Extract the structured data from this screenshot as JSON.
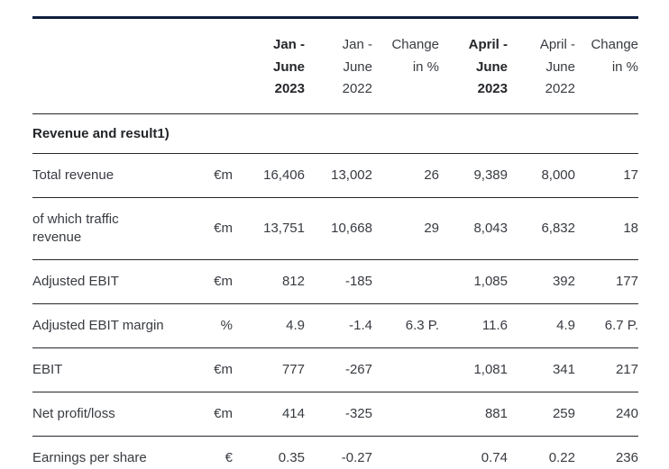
{
  "table": {
    "colors": {
      "top_rule": "#101f3e",
      "divider": "#24272d",
      "text": "#383b41",
      "bold_text": "#24262a",
      "background": "#ffffff"
    },
    "column_headers": [
      {
        "line1": "Jan -",
        "line2": "June",
        "line3": "2023",
        "bold": true
      },
      {
        "line1": "Jan -",
        "line2": "June",
        "line3": "2022",
        "bold": false
      },
      {
        "line1": "Change",
        "line2": "in %",
        "line3": "",
        "bold": false
      },
      {
        "line1": "April -",
        "line2": "June",
        "line3": "2023",
        "bold": true
      },
      {
        "line1": "April -",
        "line2": "June",
        "line3": "2022",
        "bold": false
      },
      {
        "line1": "Change",
        "line2": "in %",
        "line3": "",
        "bold": false
      }
    ],
    "section_header": "Revenue and result1)",
    "rows": [
      {
        "label": "Total revenue",
        "unit": "€m",
        "v1": "16,406",
        "v2": "13,002",
        "v3": "26",
        "v4": "9,389",
        "v5": "8,000",
        "v6": "17"
      },
      {
        "label": "of which traffic revenue",
        "unit": "€m",
        "v1": "13,751",
        "v2": "10,668",
        "v3": "29",
        "v4": "8,043",
        "v5": "6,832",
        "v6": "18"
      },
      {
        "label": "Adjusted EBIT",
        "unit": "€m",
        "v1": "812",
        "v2": "-185",
        "v3": "",
        "v4": "1,085",
        "v5": "392",
        "v6": "177"
      },
      {
        "label": "Adjusted EBIT margin",
        "unit": "%",
        "v1": "4.9",
        "v2": "-1.4",
        "v3": "6.3 P.",
        "v4": "11.6",
        "v5": "4.9",
        "v6": "6.7 P."
      },
      {
        "label": "EBIT",
        "unit": "€m",
        "v1": "777",
        "v2": "-267",
        "v3": "",
        "v4": "1,081",
        "v5": "341",
        "v6": "217"
      },
      {
        "label": "Net profit/loss",
        "unit": "€m",
        "v1": "414",
        "v2": "-325",
        "v3": "",
        "v4": "881",
        "v5": "259",
        "v6": "240"
      },
      {
        "label": "Earnings per share",
        "unit": "€",
        "v1": "0.35",
        "v2": "-0.27",
        "v3": "",
        "v4": "0.74",
        "v5": "0.22",
        "v6": "236"
      }
    ]
  }
}
